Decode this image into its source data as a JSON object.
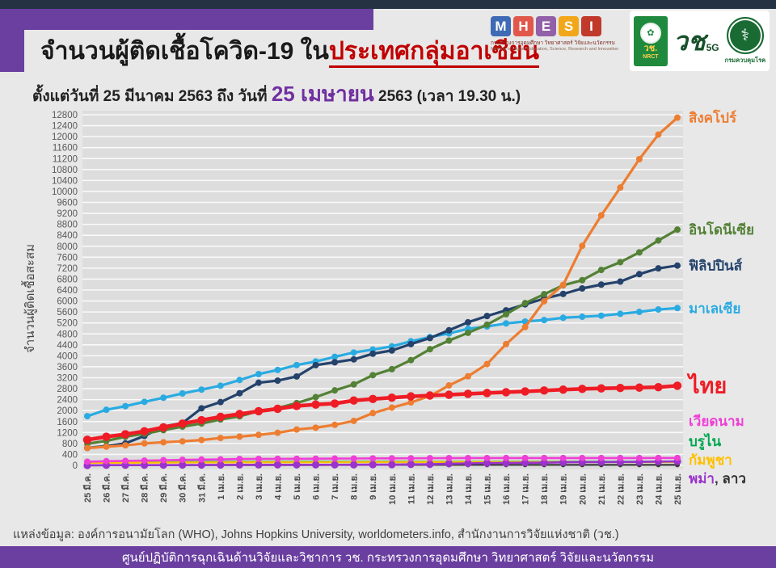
{
  "header": {
    "title_black": "จำนวนผู้ติดเชื้อโควิด-19 ใน",
    "title_red": "ประเทศกลุ่มอาเซียน",
    "subtitle_prefix": "ตั้งแต่วันที่ 25 มีนาคม 2563 ถึง วันที่ ",
    "subtitle_highlight": "25 เมษายน",
    "subtitle_suffix": " 2563 (เวลา 19.30 น.)"
  },
  "logos": {
    "mhesi": {
      "letters": [
        {
          "ch": "M",
          "bg": "#3f6ab5"
        },
        {
          "ch": "H",
          "bg": "#e2574c"
        },
        {
          "ch": "E",
          "bg": "#9260a8"
        },
        {
          "ch": "S",
          "bg": "#f2a71b"
        },
        {
          "ch": "I",
          "bg": "#c0392b"
        }
      ],
      "thai_line": "กระทรวงการอุดมศึกษา วิทยาศาสตร์ วิจัยและนวัตกรรม",
      "eng_line": "Ministry of Higher Education, Science, Research and Innovation"
    },
    "nrct": {
      "emblem": "✿",
      "thai": "วช.",
      "eng": "NRCT"
    },
    "fiveg": {
      "mark": "วช",
      "sub": "5G"
    },
    "ddc": {
      "emblem": "⚕",
      "name": "กรมควบคุมโรค"
    }
  },
  "chart": {
    "y_title": "จำนวนผู้ติดเชื้อสะสม"
  },
  "chart_data": {
    "type": "line",
    "title": "จำนวนผู้ติดเชื้อโควิด-19 ในประเทศกลุ่มอาเซียน",
    "ylabel": "จำนวนผู้ติดเชื้อสะสม",
    "ylim": [
      0,
      12800
    ],
    "y_step": 400,
    "grid": true,
    "legend_position": "right",
    "x": [
      "25 มี.ค.",
      "26 มี.ค.",
      "27 มี.ค.",
      "28 มี.ค.",
      "29 มี.ค.",
      "30 มี.ค.",
      "31 มี.ค.",
      "1 เม.ย.",
      "2 เม.ย.",
      "3 เม.ย.",
      "4 เม.ย.",
      "5 เม.ย.",
      "6 เม.ย.",
      "7 เม.ย.",
      "8 เม.ย.",
      "9 เม.ย.",
      "10 เม.ย.",
      "11 เม.ย.",
      "12 เม.ย.",
      "13 เม.ย.",
      "14 เม.ย.",
      "15 เม.ย.",
      "16 เม.ย.",
      "17 เม.ย.",
      "18 เม.ย.",
      "19 เม.ย.",
      "20 เม.ย.",
      "21 เม.ย.",
      "22 เม.ย.",
      "23 เม.ย.",
      "24 เม.ย.",
      "25 เม.ย."
    ],
    "series": [
      {
        "id": "laos",
        "name": "ลาว",
        "color": "#3a3a3a",
        "lw": 2.2,
        "r": 3.0,
        "legend": {
          "mode": "append",
          "append_to_row": 3,
          "text": ", ลาว",
          "label_color": "#333333"
        },
        "values": [
          0,
          3,
          6,
          8,
          8,
          9,
          10,
          10,
          11,
          12,
          12,
          12,
          12,
          14,
          15,
          16,
          16,
          16,
          18,
          19,
          19,
          19,
          19,
          19,
          19,
          19,
          19,
          19,
          19,
          19,
          19,
          19
        ]
      },
      {
        "id": "brunei",
        "name": "บรูไน",
        "color": "#00a651",
        "lw": 2.2,
        "r": 3.2,
        "legend": {
          "mode": "stack",
          "row": 1
        },
        "values": [
          104,
          109,
          114,
          115,
          120,
          126,
          129,
          131,
          133,
          134,
          135,
          135,
          136,
          135,
          135,
          136,
          136,
          136,
          136,
          136,
          136,
          136,
          136,
          136,
          137,
          138,
          138,
          138,
          138,
          138,
          138,
          138
        ]
      },
      {
        "id": "cambodia",
        "name": "กัมพูชา",
        "color": "#ffc000",
        "lw": 2.4,
        "r": 3.2,
        "legend": {
          "mode": "stack",
          "row": 2
        },
        "values": [
          91,
          96,
          99,
          99,
          103,
          107,
          109,
          110,
          114,
          114,
          114,
          114,
          115,
          115,
          117,
          119,
          119,
          120,
          122,
          122,
          122,
          122,
          122,
          122,
          122,
          122,
          122,
          122,
          122,
          122,
          122,
          122
        ]
      },
      {
        "id": "myanmar",
        "name": "พม่า",
        "color": "#9933cc",
        "lw": 2.6,
        "r": 4.6,
        "legend": {
          "mode": "stack",
          "row": 3
        },
        "values": [
          0,
          8,
          8,
          8,
          10,
          14,
          15,
          16,
          20,
          20,
          21,
          22,
          22,
          22,
          23,
          27,
          27,
          38,
          41,
          62,
          74,
          85,
          88,
          94,
          98,
          111,
          119,
          121,
          123,
          127,
          139,
          146
        ]
      },
      {
        "id": "vietnam",
        "name": "เวียดนาม",
        "color": "#ee3fd6",
        "lw": 2.6,
        "r": 4.0,
        "legend": {
          "mode": "stack",
          "row": 0
        },
        "values": [
          134,
          153,
          163,
          174,
          188,
          203,
          212,
          218,
          233,
          237,
          240,
          241,
          245,
          249,
          251,
          255,
          257,
          258,
          262,
          265,
          266,
          267,
          268,
          268,
          268,
          268,
          268,
          268,
          268,
          268,
          270,
          270
        ]
      },
      {
        "id": "malaysia",
        "name": "มาเลเซีย",
        "color": "#29abe2",
        "lw": 3.2,
        "r": 4.0,
        "legend": {
          "mode": "value"
        },
        "values": [
          1796,
          2031,
          2161,
          2320,
          2470,
          2626,
          2766,
          2908,
          3116,
          3333,
          3483,
          3662,
          3793,
          3963,
          4119,
          4228,
          4346,
          4530,
          4683,
          4817,
          4987,
          5072,
          5182,
          5251,
          5305,
          5389,
          5425,
          5465,
          5532,
          5603,
          5691,
          5742
        ]
      },
      {
        "id": "philippines",
        "name": "ฟิลิปปินส์",
        "color": "#24426b",
        "lw": 3.2,
        "r": 4.0,
        "legend": {
          "mode": "value"
        },
        "values": [
          636,
          707,
          803,
          1075,
          1418,
          1546,
          2084,
          2311,
          2633,
          3018,
          3094,
          3246,
          3660,
          3764,
          3870,
          4076,
          4195,
          4428,
          4648,
          4932,
          5223,
          5453,
          5660,
          5878,
          6087,
          6259,
          6459,
          6599,
          6710,
          6981,
          7192,
          7294
        ]
      },
      {
        "id": "indonesia",
        "name": "อินโดนีเซีย",
        "color": "#538135",
        "lw": 3.2,
        "r": 4.0,
        "legend": {
          "mode": "value"
        },
        "values": [
          790,
          893,
          1046,
          1155,
          1285,
          1414,
          1528,
          1677,
          1790,
          1986,
          2092,
          2273,
          2491,
          2738,
          2956,
          3293,
          3512,
          3842,
          4241,
          4557,
          4839,
          5136,
          5516,
          5923,
          6248,
          6575,
          6760,
          7135,
          7418,
          7775,
          8211,
          8607
        ]
      },
      {
        "id": "singapore",
        "name": "สิงคโปร์",
        "color": "#ed7d31",
        "lw": 3.2,
        "r": 4.0,
        "legend": {
          "mode": "value"
        },
        "values": [
          631,
          683,
          732,
          802,
          844,
          879,
          926,
          1000,
          1049,
          1114,
          1189,
          1309,
          1375,
          1481,
          1623,
          1910,
          2108,
          2299,
          2532,
          2918,
          3252,
          3699,
          4427,
          5050,
          5992,
          6588,
          8014,
          9125,
          10141,
          11178,
          12075,
          12693
        ]
      },
      {
        "id": "thailand",
        "name": "ไทย",
        "color": "#ee1c25",
        "lw": 4.6,
        "r": 5.2,
        "emphasis": true,
        "legend": {
          "mode": "value",
          "size": 27
        },
        "values": [
          934,
          1045,
          1136,
          1245,
          1388,
          1524,
          1651,
          1771,
          1875,
          1978,
          2067,
          2169,
          2220,
          2258,
          2369,
          2423,
          2473,
          2518,
          2551,
          2579,
          2613,
          2643,
          2672,
          2700,
          2733,
          2765,
          2792,
          2811,
          2826,
          2839,
          2854,
          2907
        ]
      }
    ]
  },
  "source": "แหล่งข้อมูล: องค์การอนามัยโลก (WHO), Johns Hopkins University, worldometers.info, สำนักงานการวิจัยแห่งชาติ (วช.)",
  "footer": "ศูนย์ปฏิบัติการฉุกเฉินด้านวิจัยและวิชาการ    วช.    กระทรวงการอุดมศึกษา วิทยาศาสตร์ วิจัยและนวัตกรรม"
}
